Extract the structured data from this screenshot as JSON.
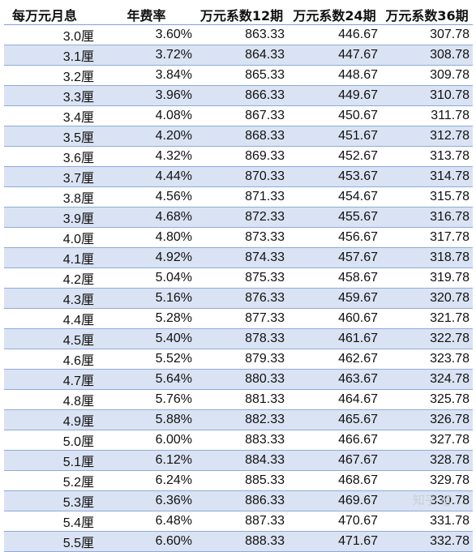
{
  "table": {
    "headers": [
      "每万元月息",
      "年费率",
      "万元系数12期",
      "万元系数24期",
      "万元系数36期"
    ],
    "rows": [
      [
        "3.0厘",
        "3.60%",
        "863.33",
        "446.67",
        "307.78"
      ],
      [
        "3.1厘",
        "3.72%",
        "864.33",
        "447.67",
        "308.78"
      ],
      [
        "3.2厘",
        "3.84%",
        "865.33",
        "448.67",
        "309.78"
      ],
      [
        "3.3厘",
        "3.96%",
        "866.33",
        "449.67",
        "310.78"
      ],
      [
        "3.4厘",
        "4.08%",
        "867.33",
        "450.67",
        "311.78"
      ],
      [
        "3.5厘",
        "4.20%",
        "868.33",
        "451.67",
        "312.78"
      ],
      [
        "3.6厘",
        "4.32%",
        "869.33",
        "452.67",
        "313.78"
      ],
      [
        "3.7厘",
        "4.44%",
        "870.33",
        "453.67",
        "314.78"
      ],
      [
        "3.8厘",
        "4.56%",
        "871.33",
        "454.67",
        "315.78"
      ],
      [
        "3.9厘",
        "4.68%",
        "872.33",
        "455.67",
        "316.78"
      ],
      [
        "4.0厘",
        "4.80%",
        "873.33",
        "456.67",
        "317.78"
      ],
      [
        "4.1厘",
        "4.92%",
        "874.33",
        "457.67",
        "318.78"
      ],
      [
        "4.2厘",
        "5.04%",
        "875.33",
        "458.67",
        "319.78"
      ],
      [
        "4.3厘",
        "5.16%",
        "876.33",
        "459.67",
        "320.78"
      ],
      [
        "4.4厘",
        "5.28%",
        "877.33",
        "460.67",
        "321.78"
      ],
      [
        "4.5厘",
        "5.40%",
        "878.33",
        "461.67",
        "322.78"
      ],
      [
        "4.6厘",
        "5.52%",
        "879.33",
        "462.67",
        "323.78"
      ],
      [
        "4.7厘",
        "5.64%",
        "880.33",
        "463.67",
        "324.78"
      ],
      [
        "4.8厘",
        "5.76%",
        "881.33",
        "464.67",
        "325.78"
      ],
      [
        "4.9厘",
        "5.88%",
        "882.33",
        "465.67",
        "326.78"
      ],
      [
        "5.0厘",
        "6.00%",
        "883.33",
        "466.67",
        "327.78"
      ],
      [
        "5.1厘",
        "6.12%",
        "884.33",
        "467.67",
        "328.78"
      ],
      [
        "5.2厘",
        "6.24%",
        "885.33",
        "468.67",
        "329.78"
      ],
      [
        "5.3厘",
        "6.36%",
        "886.33",
        "469.67",
        "330.78"
      ],
      [
        "5.4厘",
        "6.48%",
        "887.33",
        "470.67",
        "331.78"
      ],
      [
        "5.5厘",
        "6.60%",
        "888.33",
        "471.67",
        "332.78"
      ]
    ]
  },
  "watermark": "知乎 @...",
  "colors": {
    "band": "#dae3f3",
    "rule": "#8eaadb"
  }
}
